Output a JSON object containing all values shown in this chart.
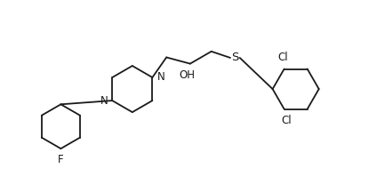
{
  "bg_color": "#ffffff",
  "line_color": "#1a1a1a",
  "line_width": 1.3,
  "font_size": 8.5,
  "fig_width": 4.24,
  "fig_height": 2.17,
  "dpi": 100,
  "xlim": [
    -0.5,
    10.5
  ],
  "ylim": [
    0,
    5
  ]
}
